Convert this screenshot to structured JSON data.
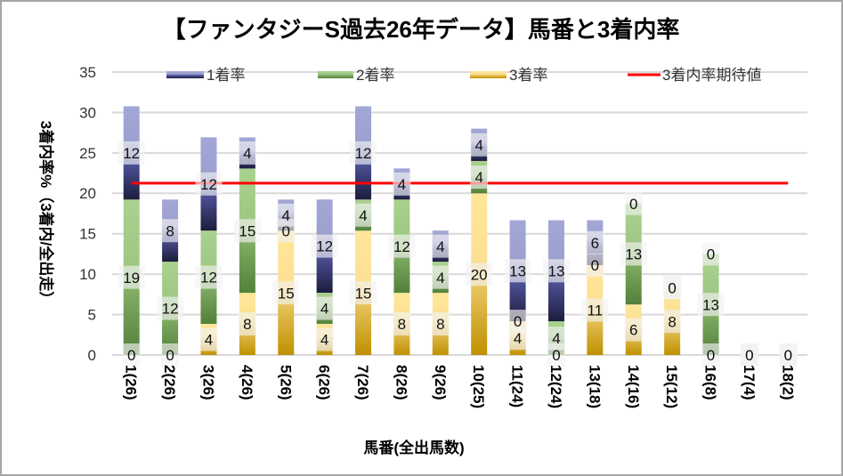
{
  "chart_data": {
    "type": "bar",
    "stacked": true,
    "title": "【ファンタジーS過去26年データ】馬番と3着内率",
    "xlabel": "馬番(全出馬数)",
    "ylabel": "3着内率%（3着内/全出走）",
    "ylim": [
      0,
      35
    ],
    "yticks": [
      0,
      5,
      10,
      15,
      20,
      25,
      30,
      35
    ],
    "grid": true,
    "legend_position": "top",
    "categories": [
      "1(26)",
      "2(26)",
      "3(26)",
      "4(26)",
      "5(26)",
      "6(26)",
      "7(26)",
      "8(26)",
      "9(26)",
      "10(25)",
      "11(24)",
      "12(24)",
      "13(18)",
      "14(16)",
      "15(12)",
      "16(8)",
      "17(4)",
      "18(2)"
    ],
    "series": [
      {
        "key": "third",
        "name": "3着率",
        "values": [
          0,
          0,
          3.85,
          7.69,
          15.38,
          3.85,
          15.38,
          7.69,
          7.69,
          20,
          4.17,
          0,
          11.11,
          6.25,
          8.33,
          0,
          0,
          0
        ],
        "labels": [
          "0",
          "0",
          "4",
          "8",
          "15",
          "4",
          "15",
          "8",
          "8",
          "20",
          "4",
          "0",
          "11",
          "6",
          "8",
          "0",
          "0",
          "0"
        ],
        "gradient": [
          "#ffe699",
          "#fce193",
          "#e6c25c",
          "#bf9000"
        ]
      },
      {
        "key": "second",
        "name": "2着率",
        "values": [
          19.23,
          11.54,
          11.54,
          15.38,
          0,
          3.85,
          3.85,
          11.54,
          3.85,
          4,
          0,
          4.17,
          0,
          12.5,
          0,
          12.5,
          0,
          0
        ],
        "labels": [
          "19",
          "12",
          "12",
          "15",
          "0",
          "4",
          "4",
          "12",
          "4",
          "4",
          "0",
          "4",
          "0",
          "13",
          "0",
          "13",
          "0",
          "0"
        ],
        "gradient": [
          "#aad28f",
          "#9fc884",
          "#80ad63",
          "#52803a"
        ]
      },
      {
        "key": "first",
        "name": "1着率",
        "values": [
          11.54,
          7.69,
          11.54,
          3.85,
          3.85,
          11.54,
          11.54,
          3.85,
          3.85,
          4,
          12.5,
          12.5,
          5.56,
          0,
          0,
          0,
          0,
          0
        ],
        "labels": [
          "12",
          "8",
          "12",
          "4",
          "4",
          "12",
          "12",
          "4",
          "4",
          "4",
          "13",
          "13",
          "6",
          "0",
          "0",
          "0",
          "0",
          "0"
        ],
        "gradient": [
          "#a3a7d6",
          "#9ca0cf",
          "#50549c",
          "#1c1c3c"
        ]
      }
    ],
    "line": {
      "name": "3着内率期待値",
      "value": 21.25,
      "color": "#ff0000"
    },
    "label_box_color": "#f2f2f2",
    "gridline_color": "#d9d9d9",
    "border_color": "#a6a6a6"
  }
}
